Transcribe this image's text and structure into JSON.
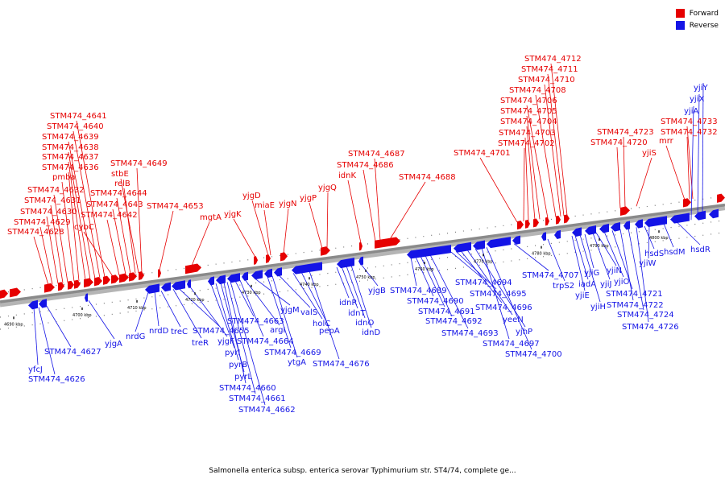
{
  "legend": {
    "forward_label": "Forward",
    "reverse_label": "Reverse",
    "forward_color": "#e60000",
    "reverse_color": "#1414e6"
  },
  "caption": "Salmonella enterica subsp. enterica serovar Typhimurium str. ST4/74, complete ge...",
  "axis": {
    "unit": "kbp",
    "ticks": [
      "4690 kbp",
      "4700 kbp",
      "4710 kbp",
      "4720 kbp",
      "4730 kbp",
      "4740 kbp",
      "4750 kbp",
      "4760 kbp",
      "4770 kbp",
      "4780 kbp",
      "4790 kbp",
      "4800 kbp"
    ]
  },
  "forward_genes": [
    "STM474_4628",
    "STM474_4629",
    "STM474_4630",
    "STM474_4631",
    "STM474_4632",
    "pmba",
    "STM474_4636",
    "STM474_4637",
    "STM474_4638",
    "STM474_4639",
    "STM474_4640",
    "STM474_4641",
    "cybC",
    "STM474_4642",
    "STM474_4643",
    "STM474_4644",
    "relB",
    "stbE",
    "STM474_4649",
    "STM474_4653",
    "mgtA",
    "yjgK",
    "yjgD",
    "miaE",
    "yjgN",
    "yjgP",
    "yjgQ",
    "idnK",
    "STM474_4686",
    "STM474_4687",
    "STM474_4688",
    "STM474_4701",
    "STM474_4702",
    "STM474_4703",
    "STM474_4704",
    "STM474_4705",
    "STM474_4706",
    "STM474_4708",
    "STM474_4710",
    "STM474_4711",
    "STM474_4712",
    "STM474_4720",
    "STM474_4723",
    "yjiS",
    "mrr",
    "STM474_4732",
    "STM474_4733"
  ],
  "reverse_genes": [
    "yfcJ",
    "STM474_4626",
    "STM474_4627",
    "yjgA",
    "nrdG",
    "nrdD",
    "treC",
    "treR",
    "STM474_4655",
    "yjgF",
    "pyrI",
    "pyrB",
    "pyrL",
    "STM474_4660",
    "STM474_4661",
    "STM474_4662",
    "STM474_4663",
    "STM474_4664",
    "argI",
    "yjgM",
    "STM474_4669",
    "ytgA",
    "valS",
    "holC",
    "pepA",
    "STM474_4676",
    "idnR",
    "idnT",
    "idnO",
    "idnD",
    "yjgB",
    "STM474_4689",
    "STM474_4690",
    "STM474_4691",
    "STM474_4692",
    "STM474_4693",
    "STM474_4694",
    "STM474_4695",
    "STM474_4696",
    "yeeN",
    "yjhP",
    "STM474_4697",
    "STM474_4700",
    "STM474_4707",
    "trpS2",
    "yjiE",
    "iadA",
    "yjiH",
    "yjiG",
    "yjiJ",
    "yjiN",
    "yjiO",
    "STM474_4721",
    "STM474_4722",
    "STM474_4724",
    "STM474_4726",
    "hsdS",
    "yjiW",
    "hsdM",
    "hsdR",
    "yjiA",
    "yjiX",
    "yjiY"
  ]
}
